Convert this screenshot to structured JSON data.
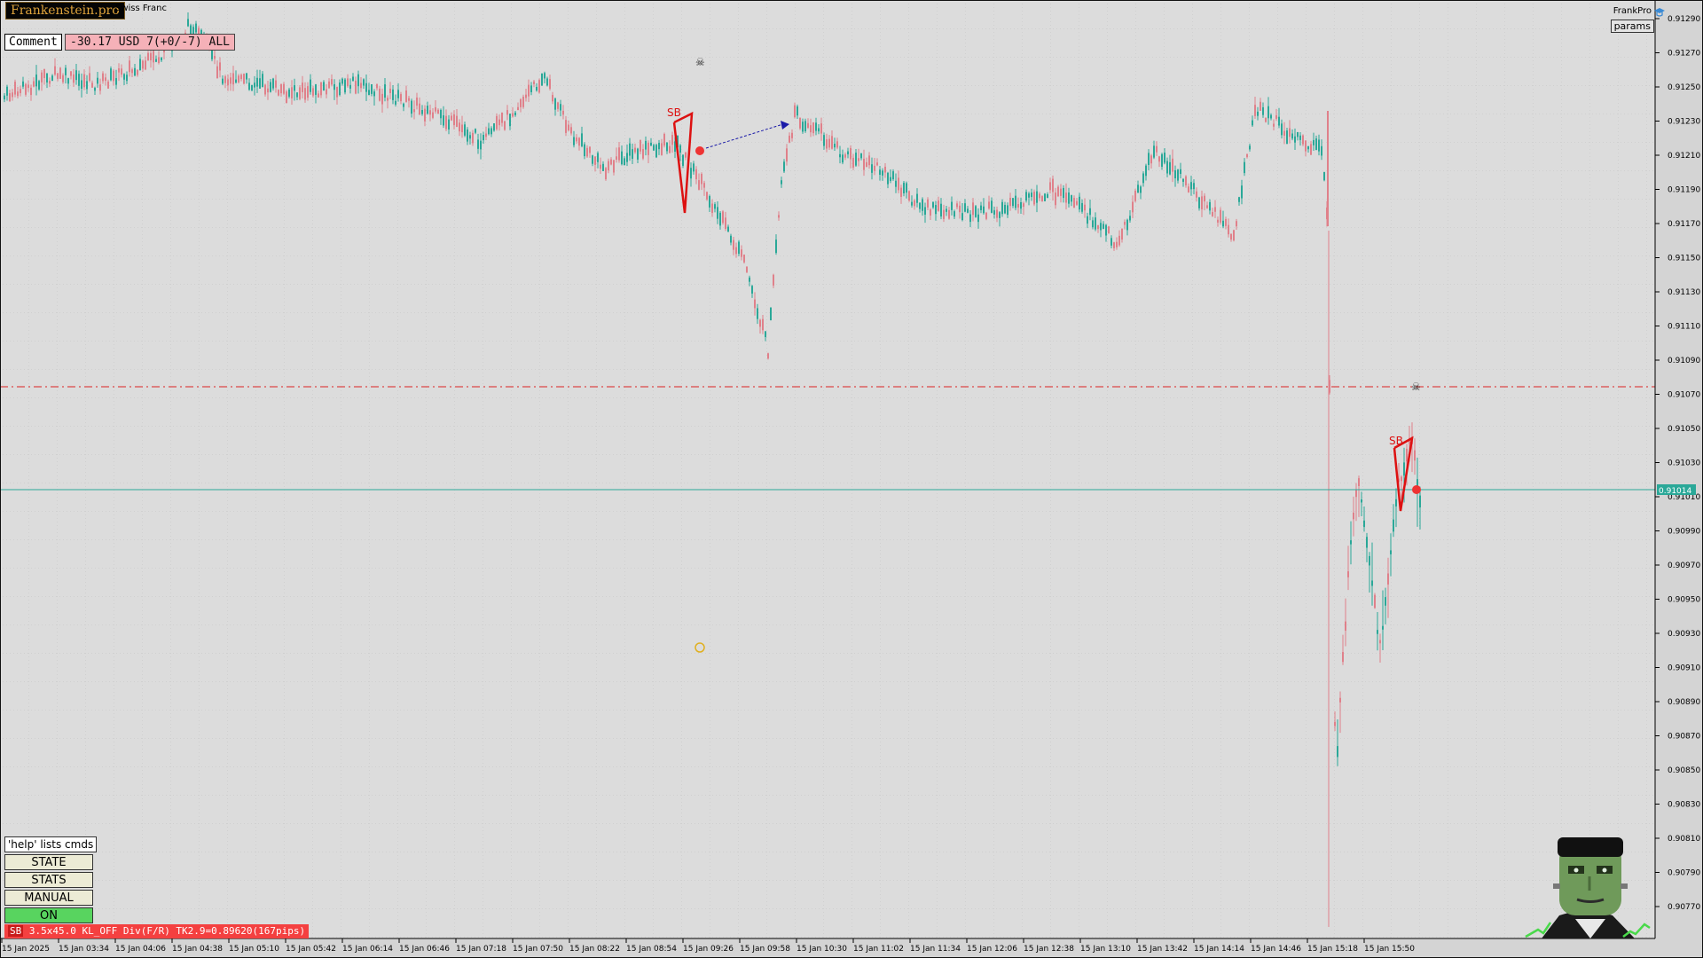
{
  "brand": {
    "logo_text": "Frankenstein.pro"
  },
  "chart": {
    "symbol_title": "Swiss Franc",
    "provider": "FrankPro",
    "params_label": "params",
    "current_price_label": "0.91014",
    "price_ticks": [
      "0.91290",
      "0.91270",
      "0.91250",
      "0.91230",
      "0.91210",
      "0.91190",
      "0.91170",
      "0.91150",
      "0.91130",
      "0.91110",
      "0.91090",
      "0.91070",
      "0.91050",
      "0.91030",
      "0.91010",
      "0.90990",
      "0.90970",
      "0.90950",
      "0.90930",
      "0.90910",
      "0.90890",
      "0.90870",
      "0.90850",
      "0.90830",
      "0.90810",
      "0.90790",
      "0.90770"
    ],
    "time_ticks": [
      "15 Jan 2025",
      "15 Jan 03:34",
      "15 Jan 04:06",
      "15 Jan 04:38",
      "15 Jan 05:10",
      "15 Jan 05:42",
      "15 Jan 06:14",
      "15 Jan 06:46",
      "15 Jan 07:18",
      "15 Jan 07:50",
      "15 Jan 08:22",
      "15 Jan 08:54",
      "15 Jan 09:26",
      "15 Jan 09:58",
      "15 Jan 10:30",
      "15 Jan 11:02",
      "15 Jan 11:34",
      "15 Jan 12:06",
      "15 Jan 12:38",
      "15 Jan 13:10",
      "15 Jan 13:42",
      "15 Jan 14:14",
      "15 Jan 14:46",
      "15 Jan 15:18",
      "15 Jan 15:50"
    ],
    "trade_markers": [
      "SB",
      "SB"
    ],
    "colors": {
      "bull": "#2aa898",
      "bear": "#e0808a",
      "bid_line": "#2aa898",
      "level_line": "#dd2222",
      "pattern": "#dd1111",
      "trade_link": "#1a1aa8"
    }
  },
  "comment": {
    "label": "Comment",
    "value": "-30.17 USD 7(+0/-7) ALL"
  },
  "panel": {
    "help_hint": "'help' lists cmds",
    "state_label": "STATE",
    "stats_label": "STATS",
    "manual_label": "MANUAL",
    "on_label": "ON"
  },
  "status": {
    "tag": "SB",
    "text": " 3.5x45.0 KL_OFF Div(F/R) TK2.9=0.89620(167pips)"
  }
}
